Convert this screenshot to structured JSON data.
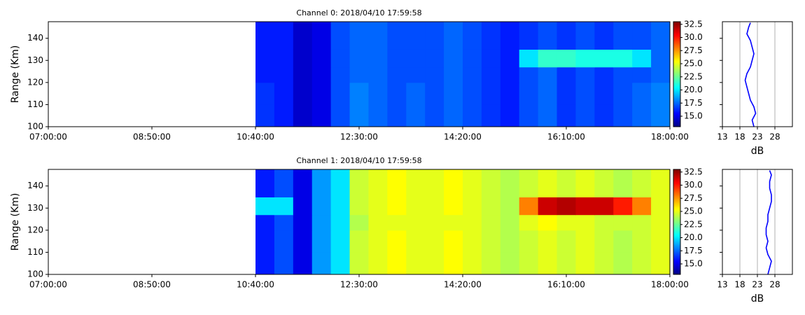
{
  "chart_data": [
    {
      "type": "heatmap",
      "title": "Channel 0: 2018/04/10 17:59:58",
      "ylabel": "Range (Km)",
      "xlim": [
        420,
        1080
      ],
      "xticks": [
        {
          "value": 420,
          "label": "07:00:00"
        },
        {
          "value": 530,
          "label": "08:50:00"
        },
        {
          "value": 640,
          "label": "10:40:00"
        },
        {
          "value": 750,
          "label": "12:30:00"
        },
        {
          "value": 860,
          "label": "14:20:00"
        },
        {
          "value": 970,
          "label": "16:10:00"
        },
        {
          "value": 1080,
          "label": "18:00:00"
        }
      ],
      "ylim": [
        100,
        147.5
      ],
      "yticks": [
        100,
        110,
        120,
        130,
        140
      ],
      "clim": [
        13,
        33
      ],
      "cticks": [
        {
          "value": 15,
          "label": "15.0"
        },
        {
          "value": 17.5,
          "label": "17.5"
        },
        {
          "value": 20,
          "label": "20.0"
        },
        {
          "value": 22.5,
          "label": "22.5"
        },
        {
          "value": 25,
          "label": "25.0"
        },
        {
          "value": 27.5,
          "label": "27.5"
        },
        {
          "value": 30,
          "label": "30.0"
        },
        {
          "value": 32.5,
          "label": "32.5"
        }
      ],
      "x": [
        640,
        660,
        680,
        700,
        720,
        740,
        760,
        780,
        800,
        820,
        840,
        860,
        880,
        900,
        920,
        940,
        960,
        980,
        1000,
        1020,
        1040,
        1060,
        1080
      ],
      "y": [
        100,
        110,
        120,
        127,
        135,
        147.5
      ],
      "z": [
        [
          16.5,
          16,
          14.5,
          15,
          17,
          18,
          17.5,
          17,
          17.5,
          17,
          17.5,
          17,
          16.5,
          16,
          17,
          17.5,
          16.5,
          17,
          16.5,
          17,
          17.5,
          18
        ],
        [
          16.5,
          16,
          14.5,
          15,
          17,
          18,
          17.5,
          17,
          17.5,
          17,
          17.5,
          17,
          16.5,
          16,
          17,
          17.5,
          16.5,
          17,
          16.5,
          17,
          17.5,
          18
        ],
        [
          16,
          16,
          14.5,
          15,
          17,
          17.5,
          17.5,
          17,
          17,
          17,
          17.5,
          17,
          16.5,
          16,
          17,
          17.5,
          16.5,
          17,
          16.5,
          17,
          17,
          17.5
        ],
        [
          16,
          16,
          14.5,
          15,
          17,
          17.5,
          17.5,
          17,
          17,
          17,
          17.5,
          17,
          16.5,
          16,
          20,
          21.5,
          21.5,
          21,
          21,
          21,
          20,
          17.5
        ],
        [
          16,
          16,
          14.5,
          15,
          17,
          17.5,
          17.5,
          17,
          17,
          17,
          17.5,
          17,
          16.5,
          16,
          16.5,
          17,
          16.5,
          17,
          16.5,
          17,
          17,
          17.5
        ]
      ]
    },
    {
      "type": "profile",
      "xlabel": "dB",
      "xlim": [
        13,
        33
      ],
      "xticks": [
        13,
        18,
        23,
        28
      ],
      "ylim": [
        100,
        147.5
      ],
      "yticks": [
        100,
        110,
        120,
        130,
        140
      ],
      "color": "#0000ff",
      "y": [
        100,
        103,
        106,
        109,
        112,
        115,
        118,
        121,
        124,
        127,
        130,
        133,
        136,
        139,
        142,
        145,
        147
      ],
      "values": [
        22,
        21.5,
        22.5,
        22,
        21,
        20.5,
        20,
        19.5,
        20,
        21,
        21.5,
        22,
        21.5,
        21,
        20,
        20.5,
        21
      ]
    },
    {
      "type": "heatmap",
      "title": "Channel 1: 2018/04/10 17:59:58",
      "ylabel": "Range (Km)",
      "xlim": [
        420,
        1080
      ],
      "xticks": [
        {
          "value": 420,
          "label": "07:00:00"
        },
        {
          "value": 530,
          "label": "08:50:00"
        },
        {
          "value": 640,
          "label": "10:40:00"
        },
        {
          "value": 750,
          "label": "12:30:00"
        },
        {
          "value": 860,
          "label": "14:20:00"
        },
        {
          "value": 970,
          "label": "16:10:00"
        },
        {
          "value": 1080,
          "label": "18:00:00"
        }
      ],
      "ylim": [
        100,
        147.5
      ],
      "yticks": [
        100,
        110,
        120,
        130,
        140
      ],
      "clim": [
        13,
        33
      ],
      "cticks": [
        {
          "value": 15,
          "label": "15.0"
        },
        {
          "value": 17.5,
          "label": "17.5"
        },
        {
          "value": 20,
          "label": "20.0"
        },
        {
          "value": 22.5,
          "label": "22.5"
        },
        {
          "value": 25,
          "label": "25.0"
        },
        {
          "value": 27.5,
          "label": "27.5"
        },
        {
          "value": 30,
          "label": "30.0"
        },
        {
          "value": 32.5,
          "label": "32.5"
        }
      ],
      "x": [
        640,
        660,
        680,
        700,
        720,
        740,
        760,
        780,
        800,
        820,
        840,
        860,
        880,
        900,
        920,
        940,
        960,
        980,
        1000,
        1020,
        1040,
        1060,
        1080
      ],
      "y": [
        100,
        110,
        120,
        127,
        135,
        147.5
      ],
      "z": [
        [
          16,
          17,
          15,
          18.5,
          20,
          24.5,
          25,
          25.5,
          25,
          25,
          25.5,
          25,
          24.5,
          24,
          24.5,
          25,
          24.5,
          25,
          24.5,
          24,
          24.5,
          25
        ],
        [
          16,
          17,
          15,
          18.5,
          20,
          24.5,
          25,
          25.5,
          25,
          25,
          25.5,
          25,
          24.5,
          24,
          24.5,
          25,
          24.5,
          25,
          24.5,
          24,
          24.5,
          25
        ],
        [
          16,
          17,
          15,
          18.5,
          20,
          24,
          25,
          25,
          25,
          25,
          25,
          25,
          24.5,
          24,
          25,
          25.5,
          25,
          25,
          24.5,
          24.5,
          24.5,
          25
        ],
        [
          20,
          20,
          15,
          18.5,
          20,
          24.5,
          25,
          25.5,
          25,
          25,
          25.5,
          25,
          24.5,
          24,
          28,
          31.5,
          32,
          31.5,
          31.5,
          30,
          28,
          25
        ],
        [
          16,
          17,
          15,
          18.5,
          20,
          24.5,
          25,
          25.5,
          25,
          25,
          25.5,
          25,
          24.5,
          24,
          24.5,
          25,
          24.5,
          25,
          24.5,
          24,
          24.5,
          25
        ]
      ]
    },
    {
      "type": "profile",
      "xlabel": "dB",
      "xlim": [
        13,
        33
      ],
      "xticks": [
        13,
        18,
        23,
        28
      ],
      "ylim": [
        100,
        147.5
      ],
      "yticks": [
        100,
        110,
        120,
        130,
        140
      ],
      "color": "#0000ff",
      "y": [
        100,
        103,
        106,
        109,
        112,
        115,
        118,
        121,
        124,
        127,
        130,
        133,
        136,
        139,
        142,
        145,
        147
      ],
      "values": [
        26,
        26.5,
        27,
        26,
        25.5,
        26,
        25.5,
        25.5,
        26,
        26,
        26.5,
        27,
        27,
        26.5,
        26.5,
        27,
        26.5
      ]
    }
  ]
}
